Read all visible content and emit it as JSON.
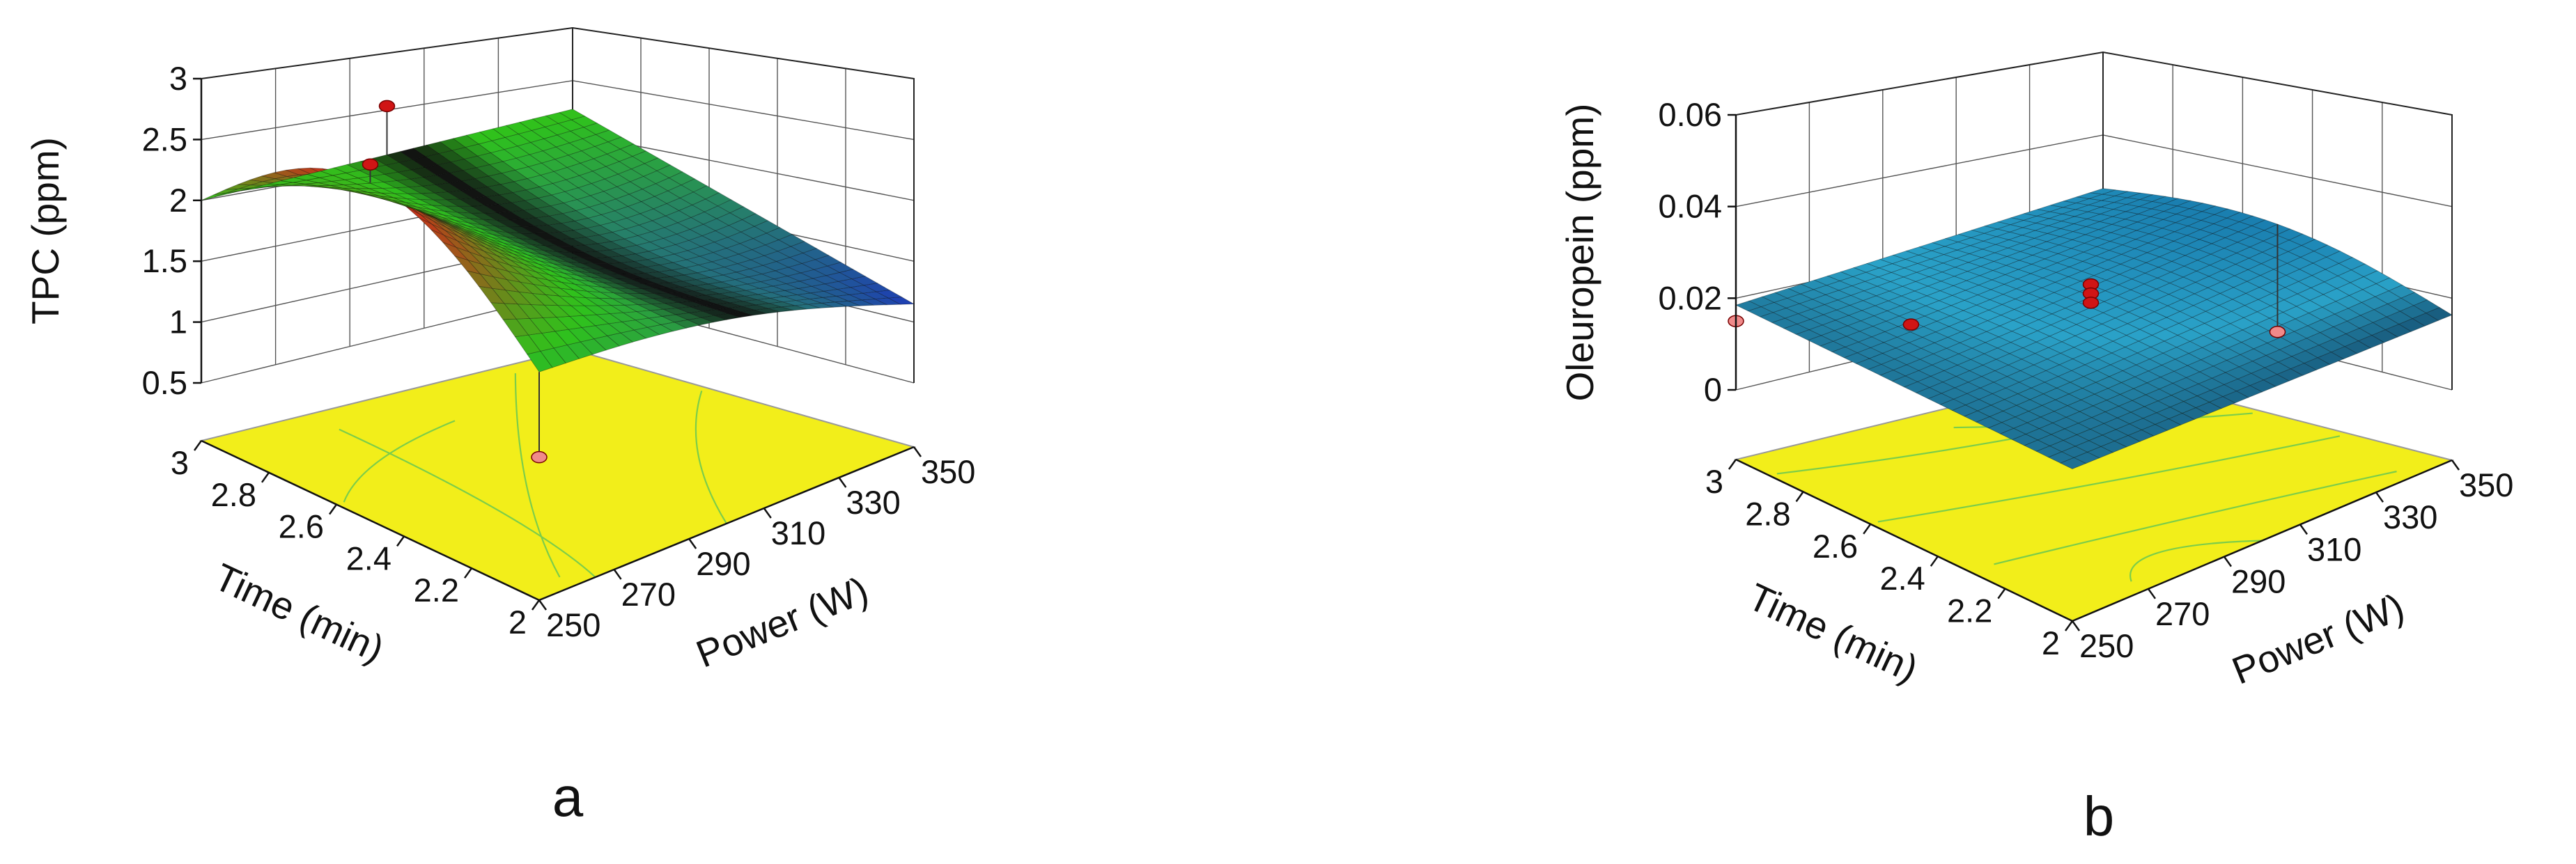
{
  "chart_data": [
    {
      "type": "surface3d",
      "panel_label": "a",
      "zlabel": "TPC (ppm)",
      "xlabel": "Power (W)",
      "ylabel": "Time (min)",
      "x_ticks": [
        "250",
        "270",
        "290",
        "310",
        "330",
        "350"
      ],
      "y_ticks": [
        "2",
        "2.2",
        "2.4",
        "2.6",
        "2.8",
        "3"
      ],
      "z_ticks": [
        "0.5",
        "1",
        "1.5",
        "2",
        "2.5",
        "3"
      ],
      "xlim": [
        250,
        350
      ],
      "ylim": [
        2,
        3
      ],
      "zlim": [
        0.5,
        3
      ],
      "surface_corners": {
        "x250_y3": 2.0,
        "x250_y2": 1.9,
        "x350_y3": 2.0,
        "x350_y2": 1.2
      },
      "surface_extremes": {
        "max": 2.75,
        "min": 1.2
      },
      "design_points": [
        {
          "power": 250,
          "time": 2.5,
          "tpc": 2.95
        },
        {
          "power": 300,
          "time": 3,
          "tpc": 2.4
        },
        {
          "power": 250,
          "time": 2,
          "tpc": 1.2
        }
      ],
      "contour_color": "#f2ee1a",
      "colors": {
        "high": "#d2261a",
        "mid": "#2fc21c",
        "low": "#1d3bb8",
        "saddle": "#111111"
      }
    },
    {
      "type": "surface3d",
      "panel_label": "b",
      "zlabel": "Oleuropein (ppm)",
      "xlabel": "Power (W)",
      "ylabel": "Time (min)",
      "x_ticks": [
        "250",
        "270",
        "290",
        "310",
        "330",
        "350"
      ],
      "y_ticks": [
        "2",
        "2.2",
        "2.4",
        "2.6",
        "2.8",
        "3"
      ],
      "z_ticks": [
        "0",
        "0.02",
        "0.04",
        "0.06"
      ],
      "xlim": [
        250,
        350
      ],
      "ylim": [
        2,
        3
      ],
      "zlim": [
        0,
        0.06
      ],
      "surface_corners": {
        "x250_y3": 0.0185,
        "x250_y2": 0.018,
        "x350_y3": 0.0245,
        "x350_y2": 0.0165
      },
      "surface_extremes": {
        "max": 0.0265,
        "min": 0.015
      },
      "design_points": [
        {
          "power": 300,
          "time": 2.5,
          "oleuropein": 0.027
        },
        {
          "power": 300,
          "time": 2.5,
          "oleuropein": 0.025
        },
        {
          "power": 300,
          "time": 2.5,
          "oleuropein": 0.023
        },
        {
          "power": 270,
          "time": 2.7,
          "oleuropein": 0.02
        },
        {
          "power": 250,
          "time": 3,
          "oleuropein": 0.015
        },
        {
          "power": 350,
          "time": 2.5,
          "oleuropein": 0.003
        }
      ],
      "contour_color": "#f2ee1a",
      "colors": {
        "high": "#1a7fb0",
        "mid": "#2aa2c8",
        "low": "#103a5a"
      }
    }
  ]
}
